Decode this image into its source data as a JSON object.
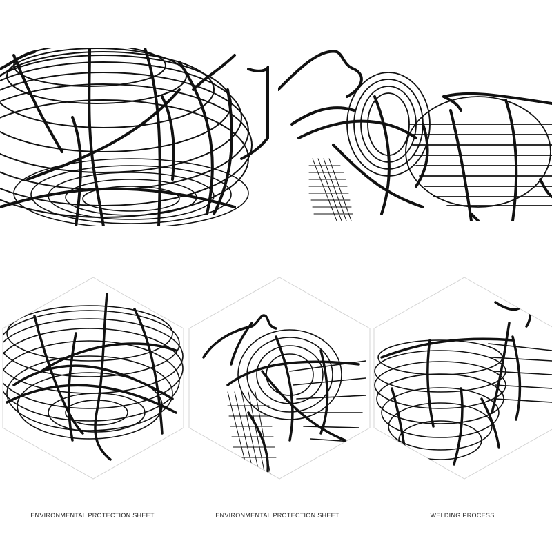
{
  "captions": [
    "ENVIRONMENTAL PROTECTION SHEET",
    "ENVIRONMENTAL PROTECTION SHEET",
    "WELDING PROCESS"
  ],
  "colors": {
    "wire": "#111111",
    "hex_outline": "#d4d4d4",
    "background": "#ffffff"
  },
  "images": [
    "wire-basket-closeup-top-left",
    "wire-basket-closeup-top-right",
    "wire-basket-hex-1",
    "wire-basket-hex-2",
    "wire-basket-hex-3"
  ]
}
